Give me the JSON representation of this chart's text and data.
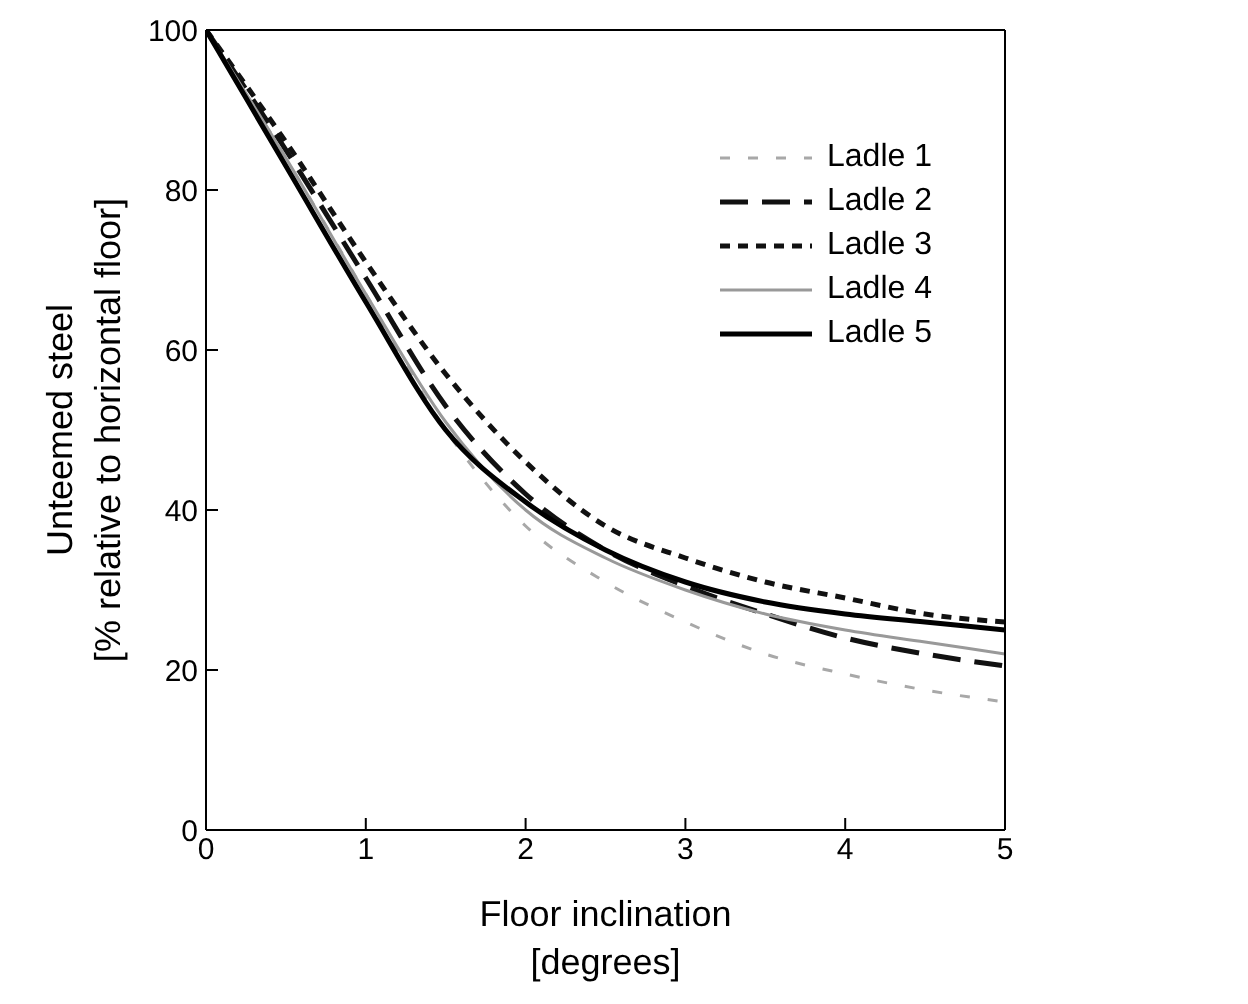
{
  "chart_data": {
    "type": "line",
    "xlabel": "Floor inclination\n[degrees]",
    "ylabel": "Unteemed steel\n[% relative to horizontal floor]",
    "x": [
      0,
      0.5,
      1,
      1.5,
      2,
      2.5,
      3,
      3.5,
      4,
      4.5,
      5
    ],
    "series": [
      {
        "name": "Ladle 1",
        "color": "#a8a8a8",
        "line_style": "dashed",
        "values": [
          100,
          84,
          67,
          50,
          38,
          31,
          26,
          22,
          19.5,
          17.5,
          16
        ]
      },
      {
        "name": "Ladle 2",
        "color": "#111111",
        "line_style": "dashed",
        "values": [
          100,
          85,
          69,
          53,
          42,
          35,
          30.5,
          27,
          24,
          22,
          20.5
        ]
      },
      {
        "name": "Ladle 3",
        "color": "#111111",
        "line_style": "dotted",
        "values": [
          100,
          86,
          71,
          57,
          46,
          38,
          34,
          31,
          29,
          27,
          26
        ]
      },
      {
        "name": "Ladle 4",
        "color": "#999999",
        "line_style": "solid",
        "values": [
          100,
          84,
          67,
          51,
          40,
          34,
          30,
          27,
          25,
          23.5,
          22
        ]
      },
      {
        "name": "Ladle 5",
        "color": "#000000",
        "line_style": "solid",
        "values": [
          100,
          83,
          66,
          50,
          41,
          35,
          31,
          28.5,
          27,
          26,
          25
        ]
      }
    ],
    "xlim": [
      0,
      5
    ],
    "xticks": [
      0,
      1,
      2,
      3,
      4,
      5
    ],
    "ylim": [
      0,
      100
    ],
    "yticks": [
      0,
      20,
      40,
      60,
      80,
      100
    ],
    "grid": false,
    "legend": "top right",
    "marker": "none"
  }
}
